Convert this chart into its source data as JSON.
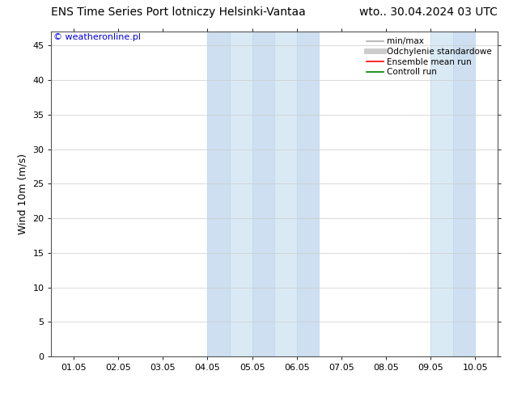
{
  "title_left": "ENS Time Series Port lotniczy Helsinki-Vantaa",
  "title_right": "wto.. 30.04.2024 03 UTC",
  "ylabel": "Wind 10m (m/s)",
  "watermark": "© weatheronline.pl",
  "watermark_color": "#0000dd",
  "ylim": [
    0,
    47
  ],
  "yticks": [
    0,
    5,
    10,
    15,
    20,
    25,
    30,
    35,
    40,
    45
  ],
  "xtick_labels": [
    "01.05",
    "02.05",
    "03.05",
    "04.05",
    "05.05",
    "06.05",
    "07.05",
    "08.05",
    "09.05",
    "10.05"
  ],
  "xtick_positions": [
    0,
    1,
    2,
    3,
    4,
    5,
    6,
    7,
    8,
    9
  ],
  "xmin": -0.5,
  "xmax": 9.5,
  "shaded_col1_color": "#cddff0",
  "shaded_col2_color": "#daeaf5",
  "shaded_regions": [
    [
      3.0,
      3.5
    ],
    [
      3.5,
      4.0
    ],
    [
      4.0,
      4.5
    ],
    [
      4.5,
      5.0
    ],
    [
      5.0,
      5.5
    ],
    [
      8.0,
      8.5
    ],
    [
      8.5,
      9.0
    ]
  ],
  "legend_items": [
    {
      "label": "min/max",
      "color": "#aaaaaa",
      "lw": 1.2,
      "ls": "-"
    },
    {
      "label": "Odchylenie standardowe",
      "color": "#cccccc",
      "lw": 5,
      "ls": "-"
    },
    {
      "label": "Ensemble mean run",
      "color": "#ff0000",
      "lw": 1.2,
      "ls": "-"
    },
    {
      "label": "Controll run",
      "color": "#008000",
      "lw": 1.2,
      "ls": "-"
    }
  ],
  "title_fontsize": 10,
  "ylabel_fontsize": 9,
  "tick_fontsize": 8,
  "watermark_fontsize": 8,
  "legend_fontsize": 7.5,
  "background_color": "#ffffff",
  "plot_bg_color": "#ffffff",
  "spine_color": "#555555",
  "spine_lw": 0.8
}
